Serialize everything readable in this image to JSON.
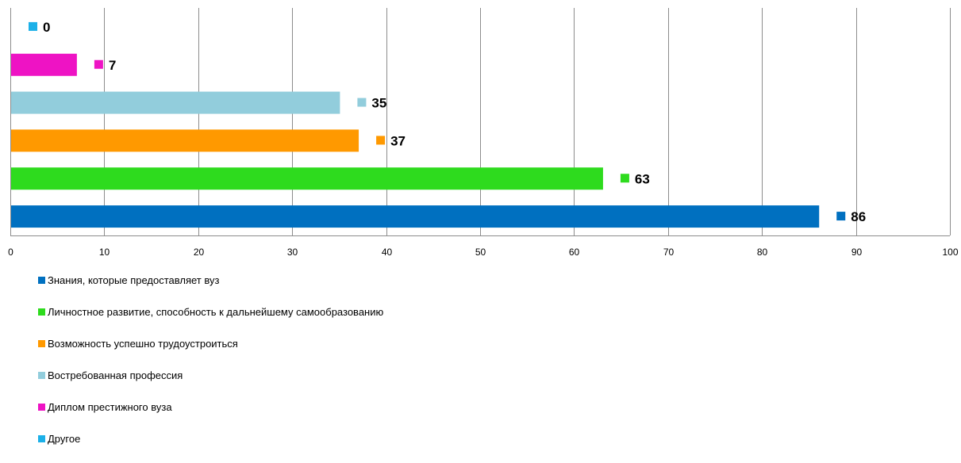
{
  "chart_data": {
    "type": "bar",
    "orientation": "horizontal",
    "categories": [
      "Знания, которые предоставляет вуз",
      "Личностное развитие, способность к дальнейшему самообразованию",
      "Возможность успешно трудоустроиться",
      "Востребованная профессия",
      "Диплом престижного вуза",
      "Другое"
    ],
    "values": [
      86,
      63,
      37,
      35,
      7,
      0
    ],
    "colors": [
      "#0070C0",
      "#2EDB1E",
      "#FF9900",
      "#92CDDC",
      "#EE13C4",
      "#1CB0E8"
    ],
    "xlim": [
      0,
      100
    ],
    "xticks": [
      "0",
      "10",
      "20",
      "30",
      "40",
      "50",
      "60",
      "70",
      "80",
      "90",
      "100"
    ],
    "grid": true,
    "legend_position": "bottom-left",
    "title": "",
    "xlabel": "",
    "ylabel": ""
  }
}
